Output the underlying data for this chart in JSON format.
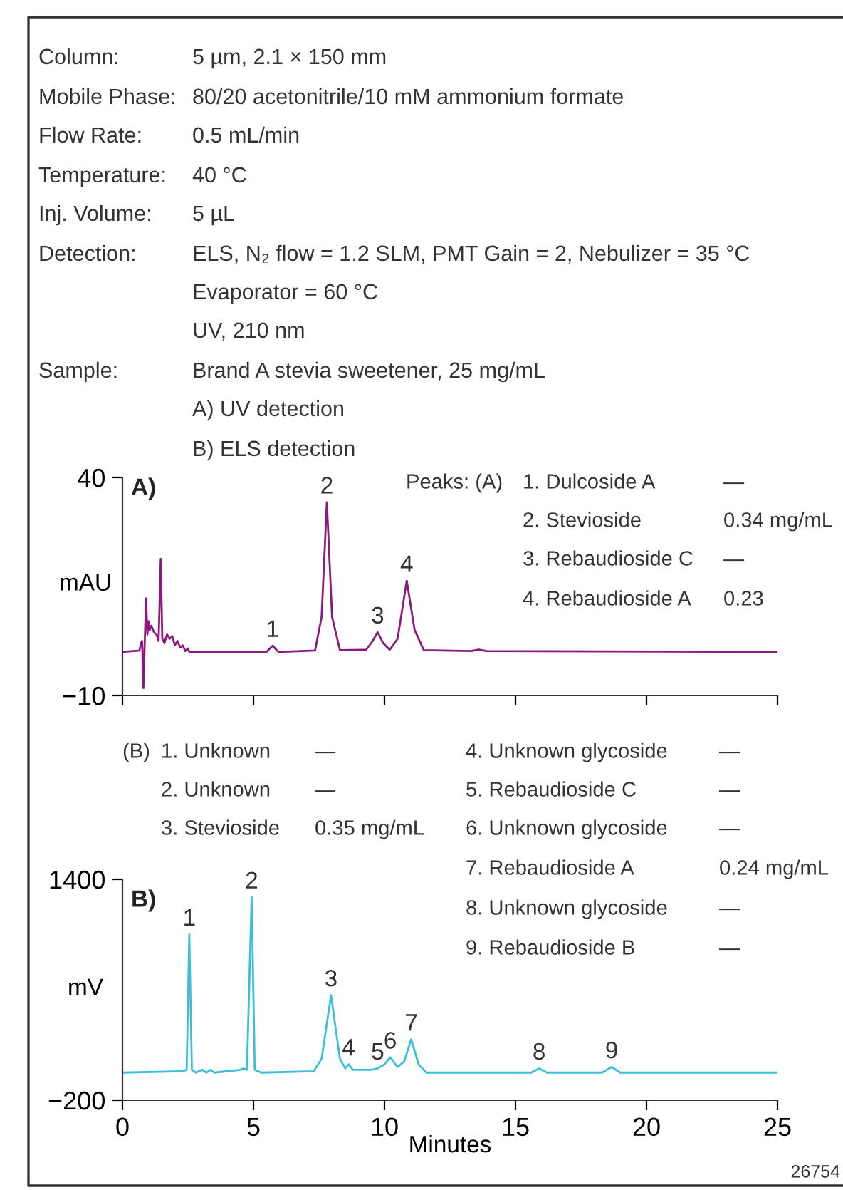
{
  "chart_data": [
    {
      "type": "line",
      "ylabel": "mAU",
      "xlim": [
        0,
        25
      ],
      "ylim": [
        -10,
        40
      ],
      "xticks": [
        {
          "value": 0,
          "label": null
        },
        {
          "value": 5,
          "label": null
        },
        {
          "value": 10,
          "label": null
        },
        {
          "value": 15,
          "label": null
        },
        {
          "value": 20,
          "label": null
        },
        {
          "value": 25,
          "label": null
        }
      ],
      "yticks": [
        40,
        {
          "value": -10,
          "label": "−10"
        }
      ],
      "tick_labels": "y",
      "grid": false,
      "legend": false,
      "x": [
        0,
        0.65,
        0.71,
        0.75,
        0.8,
        0.84,
        0.9,
        0.95,
        1.0,
        1.05,
        1.1,
        1.2,
        1.3,
        1.38,
        1.46,
        1.52,
        1.6,
        1.7,
        1.8,
        1.9,
        2.0,
        2.1,
        2.2,
        2.3,
        2.4,
        2.5,
        2.55,
        5.5,
        5.73,
        5.95,
        7.35,
        7.6,
        7.8,
        8.0,
        8.3,
        9.3,
        9.55,
        9.74,
        9.95,
        10.2,
        10.5,
        10.85,
        11.15,
        11.5,
        13.3,
        13.6,
        13.9,
        25
      ],
      "series": [
        {
          "color": "#8b1a7e",
          "values": [
            0,
            0.3,
            2,
            2.5,
            -8.3,
            0,
            12.3,
            4,
            7,
            5,
            6,
            4.5,
            4,
            2.5,
            21.3,
            3,
            2,
            4,
            3,
            3.6,
            1.5,
            2.5,
            1,
            1.5,
            0.2,
            0.8,
            0,
            0,
            1.4,
            0,
            0.3,
            8,
            34.3,
            8,
            0.4,
            0.5,
            2.5,
            4.5,
            2,
            0.5,
            3,
            16.3,
            5,
            0.4,
            0.2,
            0.5,
            0.2,
            0
          ]
        }
      ],
      "annotations": [
        "Column:",
        "5 µm, 2.1 × 150 mm",
        "Mobile Phase:",
        "80/20 acetonitrile/10 mM ammonium formate",
        "Flow Rate:",
        "0.5 mL/min",
        "Temperature:",
        "40 °C",
        "Inj. Volume:",
        "5 µL",
        "Detection:",
        "ELS, N₂ flow = 1.2 SLM, PMT Gain = 2, Nebulizer = 35 °C",
        "Evaporator = 60 °C",
        "UV, 210 nm",
        "Sample:",
        "Brand A stevia sweetener, 25 mg/mL",
        "A) UV detection",
        "B) ELS detection",
        "A)",
        "Peaks: (A)",
        "1. Dulcoside A",
        "—",
        "2. Stevioside",
        "0.34 mg/mL",
        "3. Rebaudioside C",
        "—",
        "4. Rebaudioside A",
        "0.23",
        {
          "text": "1",
          "x": 5.73,
          "y": 1.4
        },
        {
          "text": "2",
          "x": 7.8,
          "y": 34.3
        },
        {
          "text": "3",
          "x": 9.74,
          "y": 4.5
        },
        {
          "text": "4",
          "x": 10.85,
          "y": 16.3
        }
      ]
    },
    {
      "type": "line",
      "ylabel": "mV",
      "xlabel": "Minutes",
      "xlim": [
        0,
        25
      ],
      "ylim": [
        -200,
        1400
      ],
      "xticks": [
        0,
        5,
        10,
        15,
        20,
        25
      ],
      "yticks": [
        1400,
        {
          "value": -200,
          "label": "−200"
        }
      ],
      "grid": false,
      "legend": false,
      "x": [
        0,
        2.3,
        2.45,
        2.55,
        2.65,
        2.8,
        3.05,
        3.2,
        3.37,
        3.5,
        4.5,
        4.62,
        4.75,
        4.93,
        5.05,
        5.3,
        7.3,
        7.6,
        7.96,
        8.3,
        8.5,
        8.63,
        8.8,
        9.5,
        9.74,
        10.0,
        10.22,
        10.5,
        10.75,
        11.02,
        11.3,
        11.6,
        15.6,
        15.9,
        16.2,
        18.3,
        18.67,
        19.0,
        25
      ],
      "series": [
        {
          "color": "#3bbfd9",
          "values": [
            0,
            10,
            20,
            1000,
            20,
            0,
            20,
            0,
            20,
            0,
            20,
            30,
            20,
            1270,
            20,
            0,
            10,
            100,
            560,
            100,
            30,
            60,
            20,
            20,
            30,
            60,
            110,
            40,
            80,
            240,
            60,
            0,
            0,
            30,
            0,
            0,
            40,
            0,
            0
          ]
        }
      ],
      "annotations": [
        "B)",
        "(B)",
        "1. Unknown",
        "—",
        "2. Unknown",
        "—",
        "3. Stevioside",
        "0.35 mg/mL",
        "4. Unknown glycoside",
        "—",
        "5. Rebaudioside C",
        "—",
        "6. Unknown glycoside",
        "—",
        "7. Rebaudioside A",
        "0.24 mg/mL",
        "8. Unknown glycoside",
        "—",
        "9. Rebaudioside B",
        "—",
        "26754",
        {
          "text": "1",
          "x": 2.55,
          "y": 1000
        },
        {
          "text": "2",
          "x": 4.93,
          "y": 1270
        },
        {
          "text": "3",
          "x": 7.96,
          "y": 560
        },
        {
          "text": "4",
          "x": 8.63,
          "y": 60
        },
        {
          "text": "5",
          "x": 9.74,
          "y": 30
        },
        {
          "text": "6",
          "x": 10.22,
          "y": 110
        },
        {
          "text": "7",
          "x": 11.02,
          "y": 240
        },
        {
          "text": "8",
          "x": 15.9,
          "y": 30
        },
        {
          "text": "9",
          "x": 18.67,
          "y": 40
        }
      ]
    }
  ]
}
